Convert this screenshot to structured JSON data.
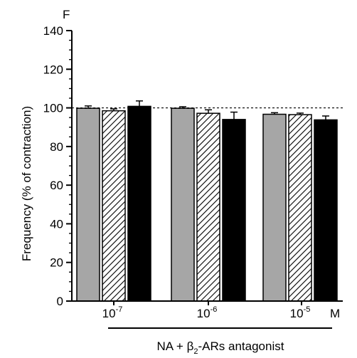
{
  "chart_data": {
    "type": "bar",
    "panel_label": "F",
    "ylabel": "Frequency (% of contraction)",
    "xlabel_prefix": "NA + β",
    "xlabel_sub": "2",
    "xlabel_suffix": "-ARs antagonist",
    "x_unit": "M",
    "ylim": [
      0,
      140
    ],
    "yticks": [
      "0",
      "20",
      "40",
      "60",
      "80",
      "100",
      "120",
      "140"
    ],
    "reference_line": 100,
    "categories": [
      {
        "base": "10",
        "exp": "-7"
      },
      {
        "base": "10",
        "exp": "-6"
      },
      {
        "base": "10",
        "exp": "-5"
      }
    ],
    "series": [
      {
        "fill": "#a6a6a6",
        "pattern": "solid",
        "values": [
          99.8,
          99.8,
          96.7
        ],
        "errors": [
          1.2,
          0.8,
          0.8
        ]
      },
      {
        "fill": "#ffffff",
        "pattern": "hatched",
        "values": [
          98.5,
          97.2,
          96.5
        ],
        "errors": [
          1.0,
          1.8,
          0.8
        ]
      },
      {
        "fill": "#000000",
        "pattern": "solid",
        "values": [
          100.8,
          94.0,
          93.8
        ],
        "errors": [
          2.8,
          3.8,
          2.0
        ]
      }
    ],
    "colors": {
      "bar_outline": "#000000",
      "reference_line": "#000000"
    }
  }
}
